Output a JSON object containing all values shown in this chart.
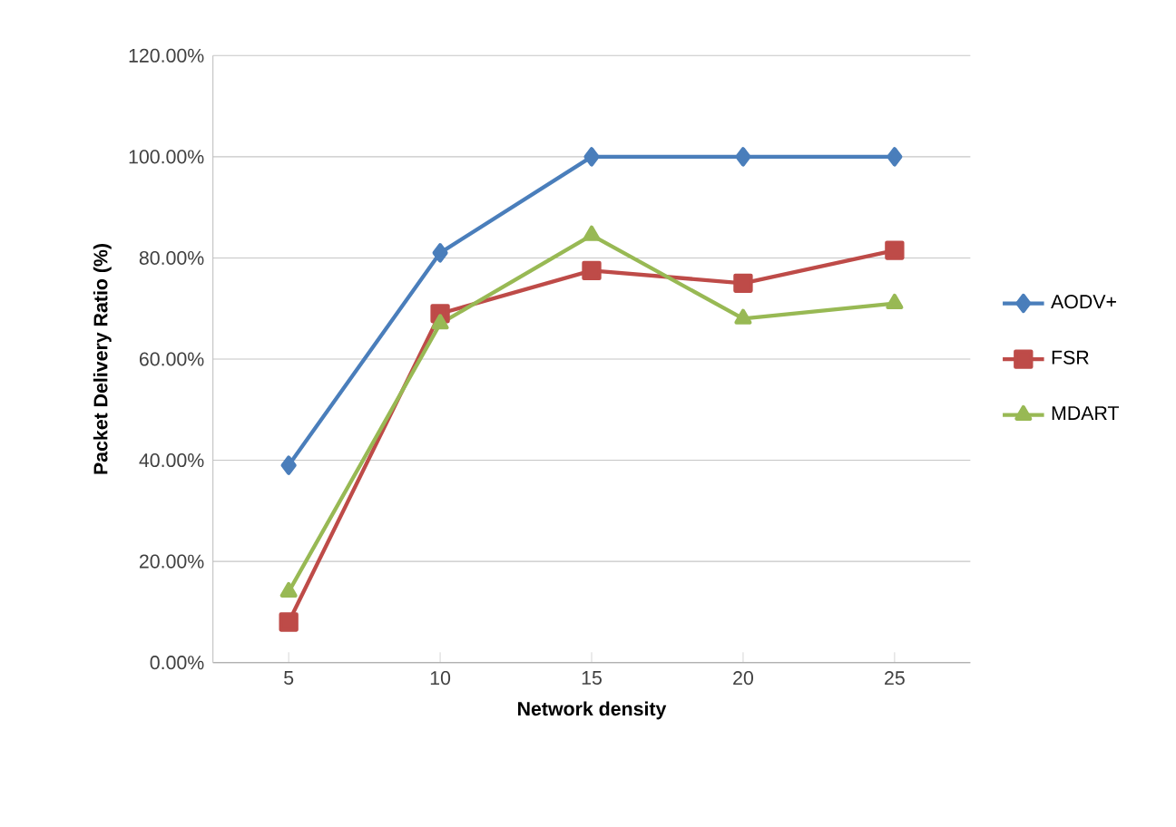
{
  "chart_data": {
    "type": "line",
    "xlabel": "Network density",
    "ylabel": "Packet Delivery Ratio (%)",
    "categories": [
      "5",
      "10",
      "15",
      "20",
      "25"
    ],
    "series": [
      {
        "name": "AODV+",
        "color": "#4a7ebb",
        "marker": "diamond",
        "values": [
          39,
          81,
          100,
          100,
          100
        ]
      },
      {
        "name": "FSR",
        "color": "#be4b48",
        "marker": "square",
        "values": [
          8,
          69,
          77.5,
          75,
          81.5
        ]
      },
      {
        "name": "MDART",
        "color": "#98b954",
        "marker": "triangle",
        "values": [
          14,
          67,
          84.5,
          68,
          71
        ]
      }
    ],
    "ylim": [
      0,
      120
    ],
    "yticks": [
      {
        "value": 0,
        "label": "0.00%"
      },
      {
        "value": 20,
        "label": "20.00%"
      },
      {
        "value": 40,
        "label": "40.00%"
      },
      {
        "value": 60,
        "label": "60.00%"
      },
      {
        "value": 80,
        "label": "80.00%"
      },
      {
        "value": 100,
        "label": "100.00%"
      },
      {
        "value": 120,
        "label": "120.00%"
      }
    ],
    "grid": "y",
    "legend": "right"
  }
}
